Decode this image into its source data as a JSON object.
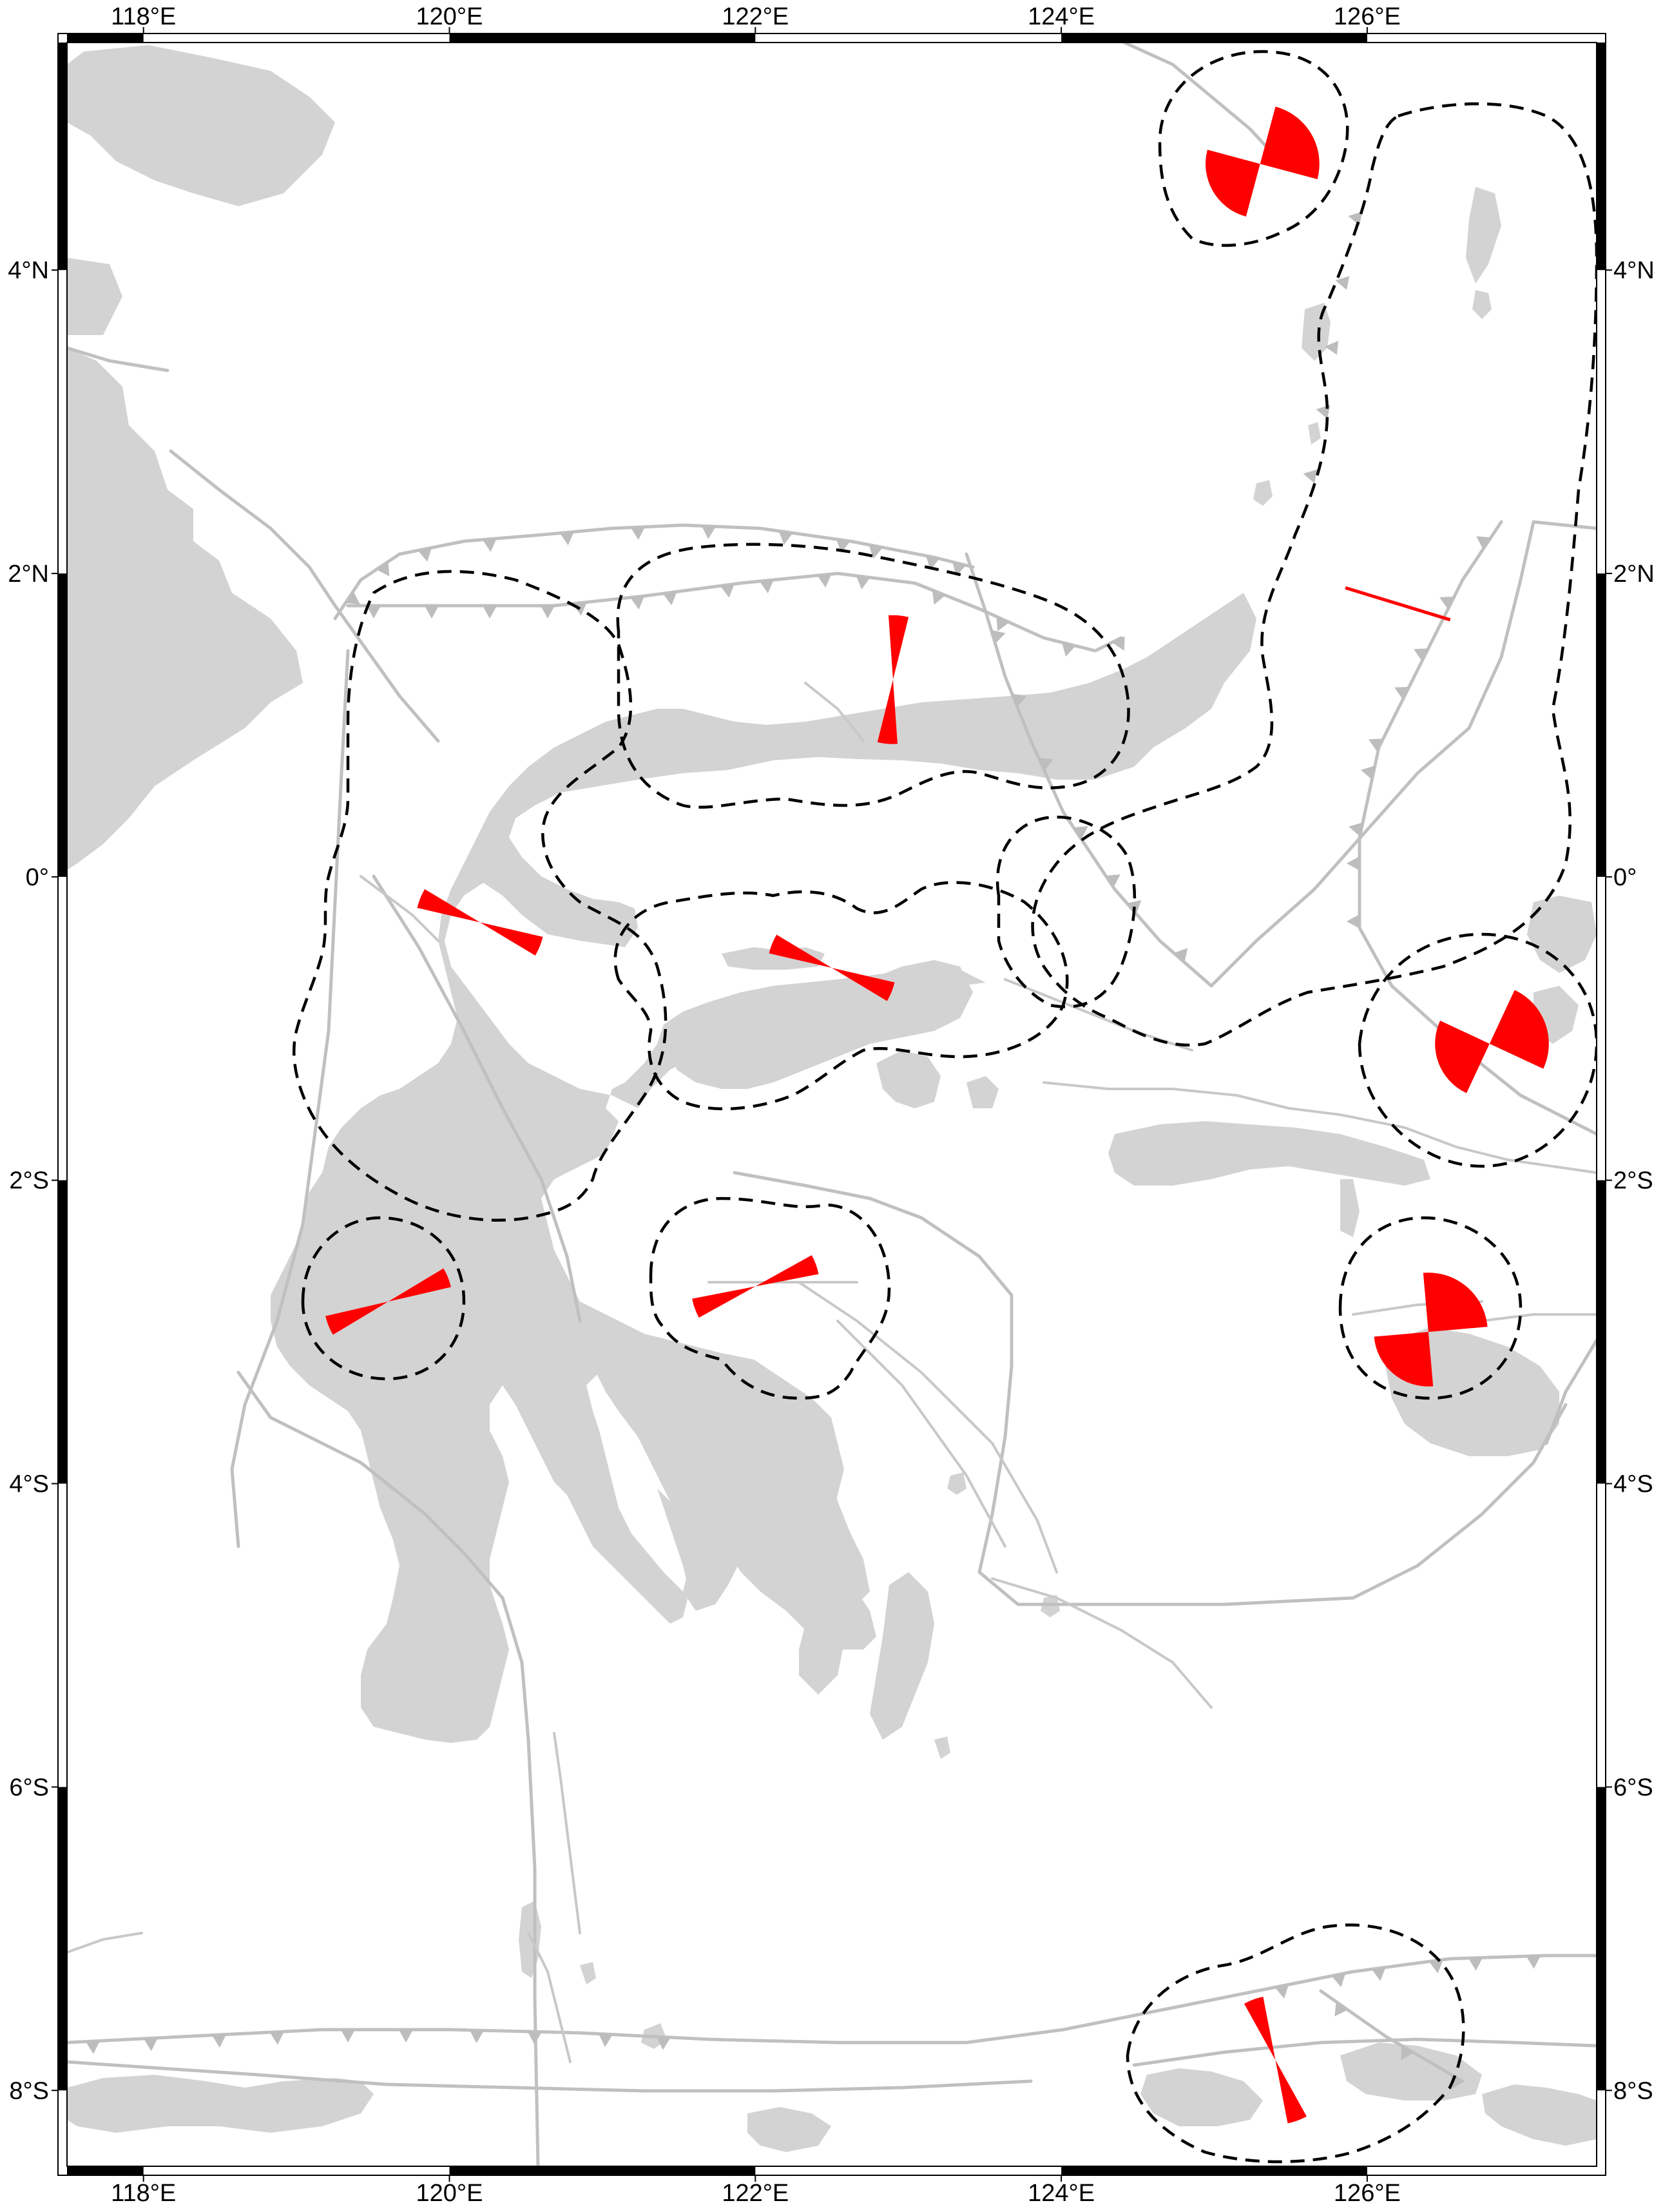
{
  "map": {
    "lon_range": [
      117.5,
      127.5
    ],
    "lat_range": [
      -8.5,
      5.5
    ],
    "x_ticks": [
      {
        "lon": 118,
        "label": "118°E"
      },
      {
        "lon": 120,
        "label": "120°E"
      },
      {
        "lon": 122,
        "label": "122°E"
      },
      {
        "lon": 124,
        "label": "124°E"
      },
      {
        "lon": 126,
        "label": "126°E"
      }
    ],
    "y_ticks": [
      {
        "lat": 4,
        "label": "4°N"
      },
      {
        "lat": 2,
        "label": "2°N"
      },
      {
        "lat": 0,
        "label": "0°"
      },
      {
        "lat": -2,
        "label": "2°S"
      },
      {
        "lat": -4,
        "label": "4°S"
      },
      {
        "lat": -6,
        "label": "6°S"
      },
      {
        "lat": -8,
        "label": "8°S"
      }
    ],
    "frame_style": "alternating black/white bars",
    "colors": {
      "land": "#d3d3d3",
      "faults": "#c0c0c0",
      "region_outline": "#000000",
      "rose": "#ff0000"
    }
  },
  "rose_diagrams": [
    {
      "id": "north-sulawesi-sea",
      "lon": 125.3,
      "lat": 4.7,
      "style": "wide petals",
      "orientation_deg": 60
    },
    {
      "id": "gorontalo",
      "lon": 122.9,
      "lat": 1.3,
      "style": "narrow petals",
      "orientation_deg": 5
    },
    {
      "id": "molucca-sea",
      "lon": 126.2,
      "lat": 1.8,
      "style": "line",
      "orientation_deg": 107
    },
    {
      "id": "palu",
      "lon": 120.2,
      "lat": -0.3,
      "style": "narrow petals",
      "orientation_deg": 112
    },
    {
      "id": "togian",
      "lon": 122.5,
      "lat": -0.6,
      "style": "narrow petals",
      "orientation_deg": 112
    },
    {
      "id": "sula",
      "lon": 126.8,
      "lat": -1.1,
      "style": "wide petals",
      "orientation_deg": 70
    },
    {
      "id": "mamuju",
      "lon": 119.6,
      "lat": -2.8,
      "style": "narrow petals",
      "orientation_deg": 68
    },
    {
      "id": "banggai-south",
      "lon": 122.0,
      "lat": -2.7,
      "style": "narrow petals",
      "orientation_deg": 70
    },
    {
      "id": "buru",
      "lon": 126.4,
      "lat": -3.0,
      "style": "wide petals",
      "orientation_deg": 40
    },
    {
      "id": "flores-sea-east",
      "lon": 125.4,
      "lat": -7.8,
      "style": "narrow petals",
      "orientation_deg": 160
    }
  ]
}
